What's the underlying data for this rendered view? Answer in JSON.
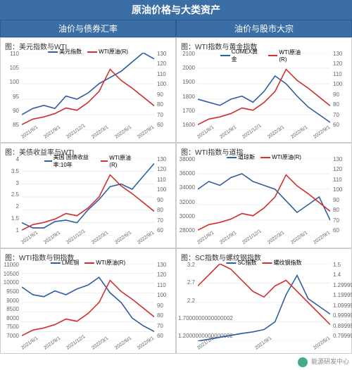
{
  "title": "原油价格与大类资产",
  "section_left": "油价与债券汇率",
  "section_right": "油价与股市大宗",
  "colors": {
    "blue": "#2e5fa0",
    "red": "#d13030",
    "grid": "#dddddd",
    "bg": "#ffffff",
    "header_bg": "#3b6ea5",
    "header_text": "#ffffff"
  },
  "x_dates": [
    "2021/6/1",
    "2021/9/1",
    "2021/12/1",
    "2022/3/1",
    "2022/6/1",
    "2022/9/1"
  ],
  "panels": [
    {
      "title": "图：美元指数与WTI",
      "series1": {
        "name": "美元指数",
        "color": "#2e5fa0",
        "data": [
          90,
          92,
          93,
          92,
          96,
          95,
          97,
          100,
          102,
          104,
          107,
          110,
          108
        ]
      },
      "series2": {
        "name": "WTI原油(R)",
        "color": "#d13030",
        "data": [
          65,
          70,
          72,
          75,
          80,
          78,
          85,
          95,
          115,
          105,
          98,
          90,
          82
        ]
      },
      "y_left": {
        "min": 85,
        "max": 110,
        "step": 5
      },
      "y_right": {
        "min": 60,
        "max": 130,
        "step": 10
      }
    },
    {
      "title": "图：WTI指数与黄金指数",
      "series1": {
        "name": "COMEX黄金",
        "color": "#2e5fa0",
        "data": [
          1800,
          1780,
          1760,
          1800,
          1820,
          1780,
          1850,
          1950,
          1900,
          1820,
          1750,
          1700,
          1650
        ]
      },
      "series2": {
        "name": "WTI原油(R)",
        "color": "#d13030",
        "data": [
          65,
          70,
          72,
          75,
          80,
          78,
          85,
          95,
          115,
          105,
          98,
          90,
          82
        ]
      },
      "y_left": {
        "min": 1600,
        "max": 2100,
        "step": 100
      },
      "y_right": {
        "min": 60,
        "max": 130,
        "step": 10
      }
    },
    {
      "title": "图：美债收益率与WTI",
      "series1": {
        "name": "美国 国债收益率:10年",
        "color": "#2e5fa0",
        "data": [
          1.5,
          1.3,
          1.3,
          1.55,
          1.6,
          1.5,
          2.0,
          2.4,
          2.9,
          3.0,
          2.8,
          3.3,
          3.8
        ]
      },
      "series2": {
        "name": "WTI原油(R)",
        "color": "#d13030",
        "data": [
          65,
          70,
          72,
          75,
          80,
          78,
          85,
          95,
          115,
          105,
          98,
          90,
          82
        ]
      },
      "y_left": {
        "min": 1,
        "max": 4,
        "step": 0.5
      },
      "y_right": {
        "min": 60,
        "max": 130,
        "step": 10
      }
    },
    {
      "title": "图：WTI指数与道指",
      "series1": {
        "name": "道琼斯",
        "color": "#2e5fa0",
        "data": [
          34000,
          35000,
          34500,
          35500,
          36000,
          35000,
          34500,
          34000,
          32500,
          31000,
          32000,
          33000,
          30000
        ]
      },
      "series2": {
        "name": "WTI原油(R)",
        "color": "#d13030",
        "data": [
          65,
          70,
          72,
          75,
          80,
          78,
          85,
          95,
          115,
          105,
          98,
          90,
          82
        ]
      },
      "y_left": {
        "min": 28000,
        "max": 38000,
        "step": 2000
      },
      "y_right": {
        "min": 60,
        "max": 130,
        "step": 10
      }
    },
    {
      "title": "图：WTI指数与铜指数",
      "series1": {
        "name": "LME铜",
        "color": "#2e5fa0",
        "data": [
          9800,
          9400,
          9300,
          9600,
          9400,
          9700,
          9900,
          10300,
          9500,
          9000,
          8200,
          7800,
          7500
        ]
      },
      "series2": {
        "name": "WTI原油(R)",
        "color": "#d13030",
        "data": [
          65,
          70,
          72,
          75,
          80,
          78,
          85,
          95,
          115,
          105,
          98,
          90,
          82
        ]
      },
      "y_left": {
        "min": 7000,
        "max": 11000,
        "step": 500
      },
      "y_right": {
        "min": 60,
        "max": 130,
        "step": 10
      }
    },
    {
      "title": "图：SC指数与螺纹钢指数",
      "series1": {
        "name": "SC指数",
        "color": "#2e5fa0",
        "data": [
          1.2,
          1.25,
          1.3,
          1.35,
          1.4,
          1.44,
          1.5,
          1.7,
          2.4,
          2.9,
          2.3,
          2.1,
          1.9
        ]
      },
      "series2": {
        "name": "螺纹钢指数",
        "color": "#d13030",
        "data": [
          1.3,
          1.4,
          1.5,
          1.45,
          1.35,
          1.25,
          1.2,
          1.3,
          1.35,
          1.25,
          1.15,
          1.05,
          0.95
        ]
      },
      "y_left": {
        "min": 1.2,
        "max": 3.2,
        "step": 0.5
      },
      "y_right": {
        "min": 0.8,
        "max": 1.5,
        "step": 0.1
      },
      "x_dates_override": [
        "2021/1/1",
        "2021/9/1",
        "2022/5/1"
      ]
    }
  ],
  "footer": "能源研发中心"
}
